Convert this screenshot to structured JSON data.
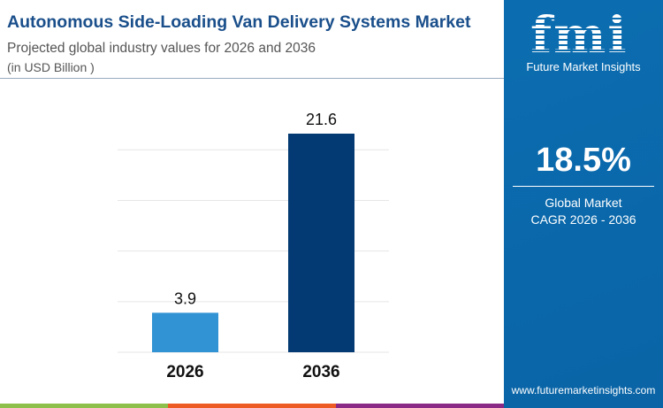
{
  "header": {
    "title": "Autonomous Side-Loading Van Delivery Systems Market",
    "subtitle": "Projected global industry values for 2026 and 2036",
    "unit": "(in USD Billion )"
  },
  "panel": {
    "logo": "fmi",
    "logo_text": "Future Market Insights",
    "cagr": "18.5%",
    "cagr_label_1": "Global Market",
    "cagr_label_2": "CAGR 2026 - 2036",
    "website": "www.futuremarketinsights.com"
  },
  "colors": {
    "bar_2026": "#3193d4",
    "bar_2036": "#033a73",
    "panel": "#0b6db0",
    "stripes": [
      "#8cc04a",
      "#ee5a24",
      "#8a2a86"
    ]
  },
  "chart_data": {
    "type": "bar",
    "categories": [
      "2026",
      "2036"
    ],
    "values": [
      3.9,
      21.6
    ],
    "labels": [
      "3.9",
      "21.6"
    ],
    "ylim": [
      0,
      21.6
    ],
    "grid": true,
    "gridlines": [
      0,
      5,
      10,
      15,
      20
    ],
    "title": "",
    "xlabel": "",
    "ylabel": ""
  }
}
